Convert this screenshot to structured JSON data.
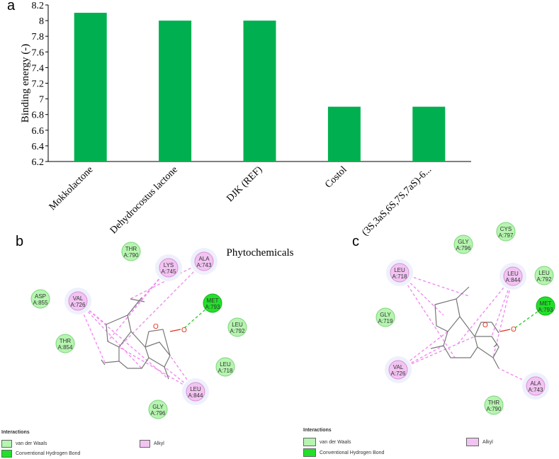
{
  "panels": {
    "a": "a",
    "b": "b",
    "c": "c"
  },
  "chart_data": {
    "type": "bar",
    "categories": [
      "Mokkolactone",
      "Dehydrocostus lactone",
      "DJK (REF)",
      "Costol",
      "(3S,3aS,6S,7S,7aS)-6..."
    ],
    "values": [
      8.1,
      8.0,
      8.0,
      6.9,
      6.9
    ],
    "title": "",
    "xlabel": "Phytochemicals",
    "ylabel": "Binding energy (-)",
    "ylim": [
      6.2,
      8.2
    ],
    "yticks": [
      "6.2",
      "6.4",
      "6.6",
      "6.8",
      "7",
      "7.2",
      "7.4",
      "7.6",
      "7.8",
      "8",
      "8.2"
    ],
    "bar_color": "#00b050",
    "grid": false
  },
  "colors": {
    "vdw": "#b6f5b0",
    "vdw_stroke": "#7bd67a",
    "hbond": "#22e02a",
    "alkyl": "#f2c4f2",
    "alkyl_stroke": "#d890d8",
    "bond": "#777777",
    "oxygen": "#e0301c"
  },
  "diagram_b": {
    "residues": [
      {
        "id": "THR A:790",
        "l1": "THR",
        "l2": "A:790",
        "type": "vdw"
      },
      {
        "id": "LYS A:745",
        "l1": "LYS",
        "l2": "A:745",
        "type": "alkyl"
      },
      {
        "id": "ALA A:743",
        "l1": "ALA",
        "l2": "A:743",
        "type": "alkyl"
      },
      {
        "id": "ASP A:855",
        "l1": "ASP",
        "l2": "A:855",
        "type": "vdw"
      },
      {
        "id": "VAL A:726",
        "l1": "VAL",
        "l2": "A:726",
        "type": "alkyl"
      },
      {
        "id": "MET A:793",
        "l1": "MET",
        "l2": "A:793",
        "type": "hbond"
      },
      {
        "id": "LEU A:792",
        "l1": "LEU",
        "l2": "A:792",
        "type": "vdw"
      },
      {
        "id": "THR A:854",
        "l1": "THR",
        "l2": "A:854",
        "type": "vdw"
      },
      {
        "id": "LEU A:718",
        "l1": "LEU",
        "l2": "A:718",
        "type": "vdw"
      },
      {
        "id": "LEU A:844",
        "l1": "LEU",
        "l2": "A:844",
        "type": "alkyl"
      },
      {
        "id": "GLY A:796",
        "l1": "GLY",
        "l2": "A:796",
        "type": "vdw"
      }
    ],
    "legend": {
      "title": "Interactions",
      "vdw": "van der Waals",
      "hbond": "Conventional Hydrogen Bond",
      "alkyl": "Alkyl"
    }
  },
  "diagram_c": {
    "residues": [
      {
        "id": "CYS A:797",
        "l1": "CYS",
        "l2": "A:797",
        "type": "vdw"
      },
      {
        "id": "GLY A:796",
        "l1": "GLY",
        "l2": "A:796",
        "type": "vdw"
      },
      {
        "id": "LEU A:718",
        "l1": "LEU",
        "l2": "A:718",
        "type": "alkyl"
      },
      {
        "id": "LEU A:844",
        "l1": "LEU",
        "l2": "A:844",
        "type": "alkyl"
      },
      {
        "id": "LEU A:792",
        "l1": "LEU",
        "l2": "A:792",
        "type": "vdw"
      },
      {
        "id": "MET A:793",
        "l1": "MET",
        "l2": "A:793",
        "type": "hbond"
      },
      {
        "id": "GLY A:719",
        "l1": "GLY",
        "l2": "A:719",
        "type": "vdw"
      },
      {
        "id": "VAL A:726",
        "l1": "VAL",
        "l2": "A:726",
        "type": "alkyl"
      },
      {
        "id": "ALA A:743",
        "l1": "ALA",
        "l2": "A:743",
        "type": "alkyl"
      },
      {
        "id": "THR A:790",
        "l1": "THR",
        "l2": "A:790",
        "type": "vdw"
      }
    ],
    "legend": {
      "title": "Interactions",
      "vdw": "van der Waals",
      "hbond": "Conventional Hydrogen Bond",
      "alkyl": "Alkyl"
    }
  }
}
